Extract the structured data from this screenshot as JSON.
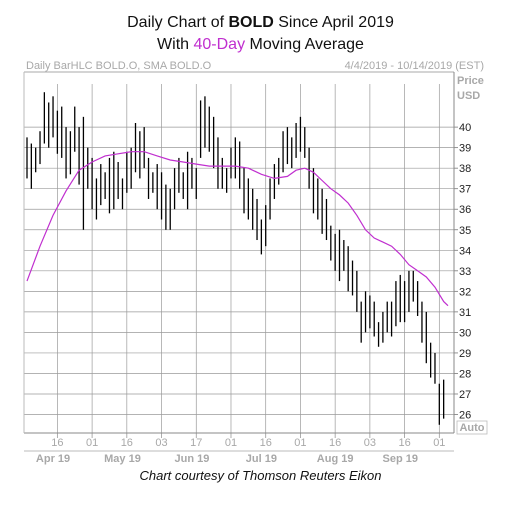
{
  "title": {
    "line1_pre": "Daily Chart of ",
    "line1_bold": "BOLD",
    "line1_post": " Since April 2019",
    "line2_pre": "With ",
    "line2_accent": "40-Day",
    "line2_post": " Moving Average"
  },
  "colors": {
    "ma_line": "#c02fcf",
    "bars": "#000000",
    "grid": "#9a9a9a",
    "axis_text": "#a8a8a8",
    "price_text": "#222222"
  },
  "credit": "Chart courtesy of Thomson Reuters Eikon",
  "chart_data": {
    "type": "line",
    "header_left": "Daily BarHLC BOLD.O, SMA BOLD.O",
    "header_right": "4/4/2019 - 10/14/2019 (EST)",
    "y_title": [
      "Price",
      "USD"
    ],
    "auto_label": "Auto",
    "ylim": [
      25.1,
      42.1
    ],
    "y_ticks": [
      26,
      27,
      28,
      29,
      30,
      31,
      32,
      33,
      34,
      35,
      36,
      37,
      38,
      39,
      40
    ],
    "x_range": [
      0,
      97
    ],
    "x_ticks": [
      {
        "i": 7,
        "label": "16"
      },
      {
        "i": 15,
        "label": "01"
      },
      {
        "i": 23,
        "label": "16"
      },
      {
        "i": 31,
        "label": "03"
      },
      {
        "i": 39,
        "label": "17"
      },
      {
        "i": 47,
        "label": "01"
      },
      {
        "i": 55,
        "label": "16"
      },
      {
        "i": 63,
        "label": "01"
      },
      {
        "i": 71,
        "label": "16"
      },
      {
        "i": 79,
        "label": "03"
      },
      {
        "i": 87,
        "label": "16"
      },
      {
        "i": 95,
        "label": "01"
      }
    ],
    "months": [
      {
        "i": 6,
        "label": "Apr 19"
      },
      {
        "i": 22,
        "label": "May 19"
      },
      {
        "i": 38,
        "label": "Jun 19"
      },
      {
        "i": 54,
        "label": "Jul 19"
      },
      {
        "i": 71,
        "label": "Aug 19"
      },
      {
        "i": 86,
        "label": "Sep 19"
      }
    ],
    "bars_hl": [
      [
        39.5,
        37.5
      ],
      [
        39.2,
        37.0
      ],
      [
        39.0,
        37.8
      ],
      [
        39.8,
        38.2
      ],
      [
        41.7,
        39.2
      ],
      [
        41.2,
        39.0
      ],
      [
        41.5,
        39.5
      ],
      [
        40.8,
        38.7
      ],
      [
        41.0,
        38.5
      ],
      [
        40.0,
        37.5
      ],
      [
        39.8,
        37.7
      ],
      [
        41.0,
        38.8
      ],
      [
        40.0,
        37.2
      ],
      [
        40.5,
        35.0
      ],
      [
        39.0,
        37.0
      ],
      [
        38.5,
        36.0
      ],
      [
        37.5,
        35.5
      ],
      [
        38.2,
        36.2
      ],
      [
        37.8,
        36.5
      ],
      [
        38.5,
        35.8
      ],
      [
        38.8,
        36.0
      ],
      [
        38.3,
        36.5
      ],
      [
        37.5,
        36.0
      ],
      [
        38.8,
        36.8
      ],
      [
        39.0,
        37.0
      ],
      [
        40.2,
        37.8
      ],
      [
        39.8,
        37.5
      ],
      [
        40.0,
        38.0
      ],
      [
        38.5,
        36.5
      ],
      [
        37.8,
        36.8
      ],
      [
        38.2,
        36.0
      ],
      [
        37.8,
        35.5
      ],
      [
        37.2,
        35.0
      ],
      [
        37.0,
        35.0
      ],
      [
        38.0,
        36.0
      ],
      [
        38.5,
        36.8
      ],
      [
        37.8,
        36.5
      ],
      [
        38.8,
        36.0
      ],
      [
        38.5,
        37.0
      ],
      [
        38.0,
        36.5
      ],
      [
        41.3,
        38.5
      ],
      [
        41.5,
        39.0
      ],
      [
        41.0,
        38.8
      ],
      [
        40.5,
        38.0
      ],
      [
        39.5,
        37.0
      ],
      [
        38.5,
        37.0
      ],
      [
        38.0,
        36.8
      ],
      [
        39.0,
        37.5
      ],
      [
        39.5,
        37.5
      ],
      [
        39.3,
        37.0
      ],
      [
        38.0,
        35.8
      ],
      [
        37.5,
        35.5
      ],
      [
        37.0,
        35.0
      ],
      [
        36.5,
        34.5
      ],
      [
        35.5,
        33.8
      ],
      [
        36.2,
        34.2
      ],
      [
        37.5,
        35.5
      ],
      [
        38.2,
        36.5
      ],
      [
        38.5,
        37.2
      ],
      [
        39.8,
        37.8
      ],
      [
        40.0,
        38.2
      ],
      [
        39.5,
        38.0
      ],
      [
        40.2,
        38.5
      ],
      [
        40.5,
        38.8
      ],
      [
        40.0,
        38.5
      ],
      [
        39.0,
        37.0
      ],
      [
        38.0,
        35.8
      ],
      [
        37.5,
        35.5
      ],
      [
        37.0,
        34.8
      ],
      [
        36.5,
        34.5
      ],
      [
        35.2,
        33.5
      ],
      [
        34.8,
        33.0
      ],
      [
        35.0,
        32.5
      ],
      [
        34.5,
        33.0
      ],
      [
        34.2,
        32.0
      ],
      [
        33.5,
        31.8
      ],
      [
        33.0,
        31.0
      ],
      [
        31.5,
        29.5
      ],
      [
        32.0,
        30.0
      ],
      [
        31.8,
        30.2
      ],
      [
        31.5,
        29.8
      ],
      [
        30.5,
        29.3
      ],
      [
        31.0,
        29.5
      ],
      [
        31.5,
        30.0
      ],
      [
        31.5,
        29.8
      ],
      [
        32.5,
        30.3
      ],
      [
        32.8,
        30.5
      ],
      [
        32.5,
        30.5
      ],
      [
        33.0,
        31.0
      ],
      [
        33.0,
        31.5
      ],
      [
        32.5,
        30.8
      ],
      [
        31.5,
        29.5
      ],
      [
        31.0,
        28.5
      ],
      [
        29.5,
        27.8
      ],
      [
        29.0,
        27.5
      ],
      [
        27.5,
        25.5
      ],
      [
        27.7,
        25.8
      ]
    ],
    "sma": [
      [
        0,
        32.5
      ],
      [
        3,
        34.2
      ],
      [
        6,
        35.7
      ],
      [
        9,
        36.9
      ],
      [
        12,
        37.9
      ],
      [
        15,
        38.3
      ],
      [
        18,
        38.6
      ],
      [
        21,
        38.7
      ],
      [
        24,
        38.8
      ],
      [
        27,
        38.8
      ],
      [
        30,
        38.6
      ],
      [
        33,
        38.4
      ],
      [
        36,
        38.3
      ],
      [
        39,
        38.2
      ],
      [
        42,
        38.1
      ],
      [
        45,
        38.1
      ],
      [
        48,
        38.1
      ],
      [
        51,
        38.0
      ],
      [
        54,
        37.7
      ],
      [
        57,
        37.5
      ],
      [
        60,
        37.6
      ],
      [
        62,
        37.9
      ],
      [
        64,
        38.0
      ],
      [
        66,
        37.8
      ],
      [
        68,
        37.4
      ],
      [
        70,
        37.0
      ],
      [
        72,
        36.7
      ],
      [
        74,
        36.3
      ],
      [
        76,
        35.7
      ],
      [
        78,
        35.0
      ],
      [
        80,
        34.6
      ],
      [
        82,
        34.4
      ],
      [
        84,
        34.2
      ],
      [
        86,
        33.8
      ],
      [
        88,
        33.3
      ],
      [
        90,
        33.0
      ],
      [
        92,
        32.7
      ],
      [
        94,
        32.2
      ],
      [
        96,
        31.5
      ],
      [
        97,
        31.3
      ]
    ]
  }
}
